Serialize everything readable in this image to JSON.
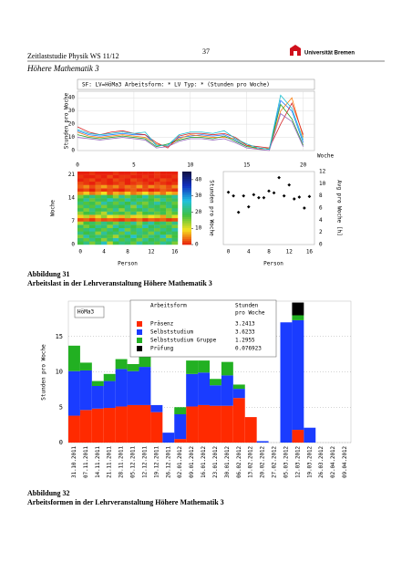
{
  "header": {
    "left": "Zeitlaststudie Physik WS 11/12",
    "page": "37",
    "logo": "Universität Bremen",
    "section": "Höhere Mathematik 3"
  },
  "figures": [
    {
      "caption_number": "Abbildung 31",
      "caption": "Arbeitslast in der Lehrveranstaltung Höhere Mathematik 3",
      "banner": "SF: LV=HöMa3   Arbeitsform: *   LV Typ: *   (Stunden pro Woche)",
      "charts": [
        {
          "type": "line",
          "y_label": "Stunden pro Woche",
          "x_label": "Woche",
          "xlim": [
            0,
            21
          ],
          "xticks": [
            0,
            5,
            10,
            15,
            20
          ],
          "ylim": [
            0,
            45
          ],
          "yticks": [
            0,
            10,
            20,
            30,
            40
          ],
          "grid": true,
          "x": [
            0,
            1,
            2,
            3,
            4,
            5,
            6,
            7,
            8,
            9,
            10,
            11,
            12,
            13,
            14,
            15,
            16,
            17,
            18,
            19,
            20
          ],
          "series": [
            {
              "color": "#1f77ff",
              "values": [
                15,
                12,
                11,
                12,
                13,
                12,
                12,
                4,
                4,
                10,
                11,
                12,
                11,
                12,
                8,
                3,
                2,
                1,
                38,
                30,
                6
              ]
            },
            {
              "color": "#ff7f0e",
              "values": [
                14,
                11,
                10,
                11,
                12,
                11,
                10,
                5,
                3,
                9,
                12,
                11,
                10,
                10,
                9,
                4,
                1,
                2,
                30,
                40,
                10
              ]
            },
            {
              "color": "#2ca02c",
              "values": [
                12,
                10,
                9,
                10,
                11,
                10,
                9,
                3,
                5,
                8,
                10,
                10,
                9,
                11,
                7,
                3,
                2,
                1,
                35,
                24,
                4
              ]
            },
            {
              "color": "#d62728",
              "values": [
                18,
                14,
                12,
                14,
                15,
                13,
                12,
                6,
                2,
                11,
                13,
                13,
                12,
                13,
                10,
                4,
                3,
                2,
                20,
                36,
                12
              ]
            },
            {
              "color": "#9467bd",
              "values": [
                10,
                9,
                8,
                9,
                10,
                9,
                8,
                2,
                3,
                7,
                9,
                9,
                8,
                9,
                6,
                2,
                1,
                0,
                28,
                22,
                3
              ]
            },
            {
              "color": "#17becf",
              "values": [
                16,
                13,
                12,
                13,
                14,
                13,
                14,
                4,
                4,
                12,
                14,
                14,
                13,
                15,
                9,
                5,
                2,
                1,
                42,
                32,
                8
              ]
            }
          ]
        },
        {
          "type": "heatmap",
          "y_label": "Woche",
          "x_label": "Person",
          "xlim": [
            0,
            17
          ],
          "xticks": [
            0,
            4,
            8,
            12,
            16
          ],
          "ylim": [
            0,
            22
          ],
          "yticks": [
            0,
            7,
            14,
            21
          ],
          "values": [
            [
              18,
              22,
              15,
              20,
              25,
              12,
              18,
              22,
              20,
              16,
              24,
              19,
              21,
              17,
              23,
              20,
              15
            ],
            [
              20,
              16,
              22,
              18,
              14,
              20,
              25,
              17,
              22,
              19,
              15,
              23,
              18,
              21,
              16,
              24,
              20
            ],
            [
              15,
              24,
              19,
              22,
              20,
              17,
              13,
              21,
              18,
              26,
              20,
              16,
              22,
              19,
              25,
              14,
              18
            ],
            [
              22,
              18,
              20,
              14,
              23,
              19,
              21,
              16,
              24,
              17,
              22,
              20,
              15,
              23,
              18,
              21,
              19
            ],
            [
              17,
              21,
              24,
              19,
              16,
              22,
              18,
              25,
              15,
              20,
              23,
              17,
              21,
              16,
              22,
              19,
              24
            ],
            [
              20,
              15,
              18,
              23,
              21,
              14,
              24,
              19,
              22,
              18,
              16,
              25,
              19,
              22,
              17,
              20,
              15
            ],
            [
              12,
              18,
              20,
              16,
              22,
              19,
              15,
              21,
              17,
              23,
              14,
              20,
              24,
              18,
              21,
              16,
              22
            ],
            [
              2,
              3,
              1,
              4,
              2,
              3,
              2,
              1,
              3,
              2,
              4,
              1,
              3,
              2,
              3,
              1,
              2
            ],
            [
              8,
              12,
              6,
              10,
              14,
              9,
              11,
              7,
              13,
              8,
              10,
              12,
              9,
              11,
              6,
              14,
              10
            ],
            [
              14,
              18,
              20,
              16,
              12,
              22,
              17,
              19,
              15,
              21,
              13,
              18,
              20,
              16,
              19,
              14,
              17
            ],
            [
              19,
              15,
              22,
              18,
              20,
              16,
              23,
              14,
              21,
              17,
              19,
              22,
              16,
              20,
              18,
              15,
              21
            ],
            [
              16,
              21,
              17,
              23,
              15,
              19,
              20,
              18,
              22,
              14,
              24,
              17,
              21,
              19,
              16,
              22,
              18
            ],
            [
              21,
              17,
              19,
              15,
              24,
              20,
              16,
              22,
              18,
              23,
              17,
              15,
              20,
              24,
              19,
              21,
              16
            ],
            [
              18,
              23,
              16,
              20,
              19,
              25,
              21,
              17,
              24,
              19,
              22,
              20,
              18,
              15,
              23,
              17,
              20
            ],
            [
              15,
              19,
              22,
              17,
              21,
              18,
              14,
              23,
              16,
              20,
              18,
              24,
              17,
              22,
              20,
              19,
              23
            ],
            [
              5,
              8,
              4,
              6,
              9,
              3,
              7,
              5,
              8,
              4,
              6,
              9,
              5,
              7,
              4,
              8,
              6
            ],
            [
              1,
              2,
              0,
              3,
              1,
              2,
              1,
              0,
              2,
              3,
              1,
              2,
              0,
              1,
              3,
              2,
              1
            ],
            [
              3,
              5,
              2,
              4,
              6,
              3,
              5,
              2,
              4,
              3,
              6,
              2,
              5,
              3,
              4,
              2,
              5
            ],
            [
              2,
              1,
              0,
              2,
              1,
              0,
              1,
              2,
              0,
              1,
              2,
              1,
              0,
              2,
              1,
              0,
              1
            ],
            [
              0,
              1,
              2,
              0,
              1,
              0,
              2,
              1,
              0,
              2,
              1,
              0,
              1,
              0,
              2,
              1,
              0
            ],
            [
              1,
              0,
              0,
              1,
              0,
              2,
              0,
              1,
              1,
              0,
              0,
              1,
              0,
              1,
              0,
              0,
              1
            ],
            [
              0,
              0,
              1,
              0,
              0,
              0,
              1,
              0,
              0,
              1,
              0,
              0,
              0,
              1,
              0,
              0,
              0
            ]
          ],
          "colorbar": {
            "label": "Stunden pro Woche",
            "lim": [
              0,
              45
            ],
            "ticks": [
              0,
              10,
              20,
              30,
              40
            ],
            "colors": [
              "#e8200c",
              "#f5e020",
              "#40c040",
              "#20c0e0",
              "#1030c0",
              "#101040"
            ]
          }
        },
        {
          "type": "scatter",
          "x_label": "Person",
          "y_label": "Avg pro Woche [h]",
          "xlim": [
            -1,
            17
          ],
          "xticks": [
            0,
            4,
            8,
            12,
            16
          ],
          "y2lim": [
            0,
            12
          ],
          "y2ticks": [
            0,
            2,
            4,
            6,
            8,
            10,
            12
          ],
          "color": "#000000",
          "x": [
            0,
            1,
            2,
            3,
            4,
            5,
            6,
            7,
            8,
            9,
            10,
            11,
            12,
            13,
            14,
            15,
            16
          ],
          "values": [
            8.6,
            8,
            5.3,
            8,
            6.2,
            8.2,
            7.7,
            7.7,
            8.8,
            8.5,
            11,
            8,
            9.8,
            7.5,
            7.8,
            6,
            7.9
          ]
        }
      ]
    },
    {
      "caption_number": "Abbildung 32",
      "caption": "Arbeitsformen in der Lehrveranstaltung Höhere Mathematik 3",
      "chart": {
        "type": "bar",
        "stacked": true,
        "y_label": "Stunden pro Woche",
        "tag": "HöMa3",
        "legend_title": "Arbeitsform",
        "legend_value_title": [
          "Stunden",
          "pro Woche"
        ],
        "categories": [
          "31.10.2011",
          "07.11.2011",
          "14.11.2011",
          "21.11.2011",
          "28.11.2011",
          "05.12.2011",
          "12.12.2011",
          "19.12.2011",
          "26.12.2011",
          "02.01.2012",
          "09.01.2012",
          "16.01.2012",
          "23.01.2012",
          "30.01.2012",
          "06.02.2012",
          "13.02.2012",
          "20.02.2012",
          "27.02.2012",
          "05.03.2012",
          "12.03.2012",
          "19.03.2012",
          "26.03.2012",
          "02.04.2012",
          "09.04.2012"
        ],
        "ylim": [
          0,
          20
        ],
        "yticks": [
          0,
          5,
          10,
          15
        ],
        "grid": true,
        "series": [
          {
            "name": "Präsenz",
            "color": "#ff2a00",
            "mean": 3.2413,
            "values": [
              3.8,
              4.6,
              4.8,
              4.9,
              5.1,
              5.3,
              5.3,
              4.3,
              0,
              0.5,
              5.1,
              5.3,
              5.2,
              5.2,
              6.3,
              3.6,
              0,
              0,
              0,
              1.8,
              0,
              0,
              0,
              0
            ]
          },
          {
            "name": "Selbststudium",
            "color": "#1a3cff",
            "mean": 3.6233,
            "values": [
              6.3,
              5.6,
              3.2,
              3.8,
              5.3,
              4.8,
              5.4,
              1,
              1.4,
              3.5,
              4.6,
              4.6,
              2.9,
              4.3,
              1.3,
              0,
              0.2,
              0,
              17,
              15.5,
              2.1,
              0,
              0,
              0
            ]
          },
          {
            "name": "Selbststudium Gruppe",
            "color": "#22b022",
            "mean": 1.2955,
            "values": [
              3.6,
              1.1,
              0.7,
              1,
              1.4,
              1,
              1.7,
              0,
              0,
              1,
              1.9,
              1.7,
              0.9,
              1.9,
              0.6,
              0,
              0,
              0,
              0,
              0.7,
              0,
              0,
              0,
              0
            ]
          },
          {
            "name": "Prüfung",
            "color": "#000000",
            "mean": 0.076923,
            "values": [
              0,
              0,
              0,
              0,
              0,
              0,
              0,
              0,
              0,
              0,
              0,
              0,
              0,
              0,
              0,
              0,
              0,
              0,
              0,
              1.8,
              0,
              0,
              0,
              0
            ]
          }
        ]
      }
    }
  ]
}
